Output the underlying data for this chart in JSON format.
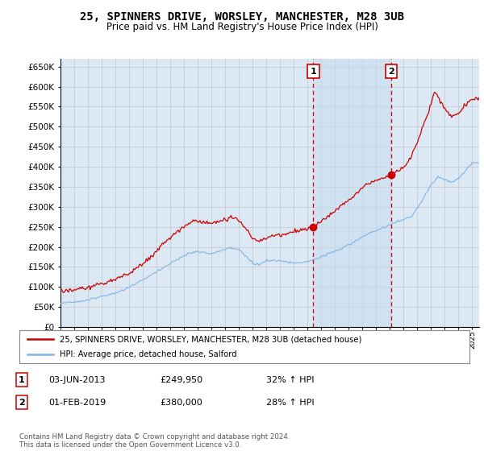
{
  "title": "25, SPINNERS DRIVE, WORSLEY, MANCHESTER, M28 3UB",
  "subtitle": "Price paid vs. HM Land Registry's House Price Index (HPI)",
  "ylim": [
    0,
    670000
  ],
  "xlim_start": 1995.0,
  "xlim_end": 2025.5,
  "legend_line1": "25, SPINNERS DRIVE, WORSLEY, MANCHESTER, M28 3UB (detached house)",
  "legend_line2": "HPI: Average price, detached house, Salford",
  "sale1_date": 2013.42,
  "sale1_price": 249950,
  "sale1_label": "1",
  "sale2_date": 2019.08,
  "sale2_price": 380000,
  "sale2_label": "2",
  "footer": "Contains HM Land Registry data © Crown copyright and database right 2024.\nThis data is licensed under the Open Government Licence v3.0.",
  "table_row1": [
    "1",
    "03-JUN-2013",
    "£249,950",
    "32% ↑ HPI"
  ],
  "table_row2": [
    "2",
    "01-FEB-2019",
    "£380,000",
    "28% ↑ HPI"
  ],
  "hpi_color": "#7EB6E8",
  "price_color": "#CC0000",
  "bg_color": "#DCE9F5",
  "shade_color": "#C8DCEF",
  "grid_color": "#BBBBBB",
  "annotation_color": "#CC0000",
  "title_fontsize": 10,
  "subtitle_fontsize": 8.5
}
